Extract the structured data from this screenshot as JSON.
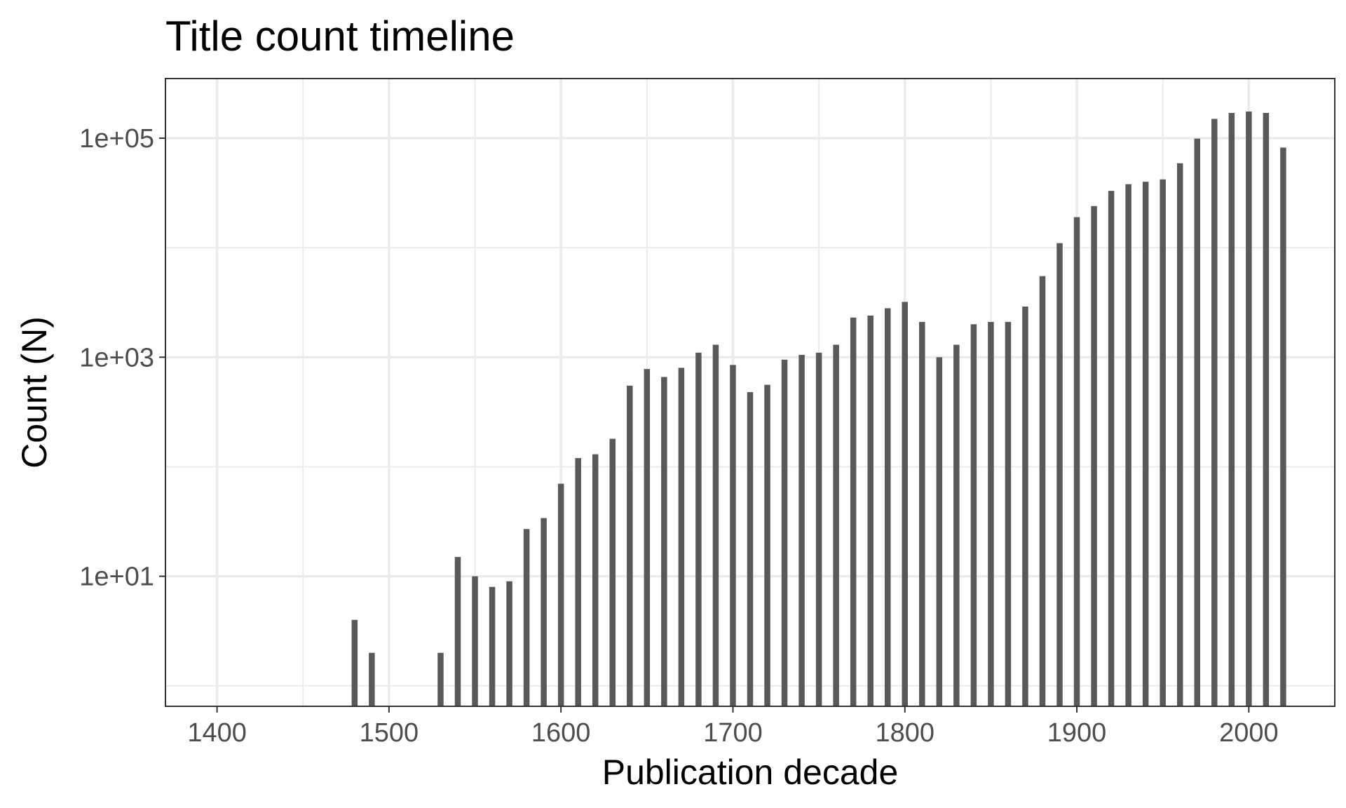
{
  "chart_data": {
    "type": "bar",
    "title": "Title count timeline",
    "xlabel": "Publication decade",
    "ylabel": "Count (N)",
    "x_scale": "linear",
    "y_scale": "log10",
    "xlim": [
      1370,
      2050
    ],
    "ylim": [
      0.65,
      350000
    ],
    "x_ticks": [
      1400,
      1500,
      1600,
      1700,
      1800,
      1900,
      2000
    ],
    "x_tick_labels": [
      "1400",
      "1500",
      "1600",
      "1700",
      "1800",
      "1900",
      "2000"
    ],
    "y_ticks": [
      10,
      1000,
      100000
    ],
    "y_tick_labels": [
      "1e+01",
      "1e+03",
      "1e+05"
    ],
    "grid": true,
    "bar_color": "#595959",
    "x": [
      1480,
      1490,
      1530,
      1540,
      1550,
      1560,
      1570,
      1580,
      1590,
      1600,
      1610,
      1620,
      1630,
      1640,
      1650,
      1660,
      1670,
      1680,
      1690,
      1700,
      1710,
      1720,
      1730,
      1740,
      1750,
      1760,
      1770,
      1780,
      1790,
      1800,
      1810,
      1820,
      1830,
      1840,
      1850,
      1860,
      1870,
      1880,
      1890,
      1900,
      1910,
      1920,
      1930,
      1940,
      1950,
      1960,
      1970,
      1980,
      1990,
      2000,
      2010,
      2020
    ],
    "values": [
      4,
      2,
      2,
      15,
      10,
      8,
      9,
      27,
      34,
      70,
      120,
      130,
      180,
      550,
      780,
      660,
      800,
      1100,
      1300,
      850,
      480,
      560,
      950,
      1050,
      1100,
      1300,
      2300,
      2400,
      2800,
      3200,
      2100,
      1000,
      1300,
      2000,
      2100,
      2100,
      2900,
      5500,
      11000,
      19000,
      24000,
      33000,
      38000,
      40000,
      42000,
      59000,
      99000,
      150000,
      170000,
      175000,
      170000,
      82000
    ]
  }
}
